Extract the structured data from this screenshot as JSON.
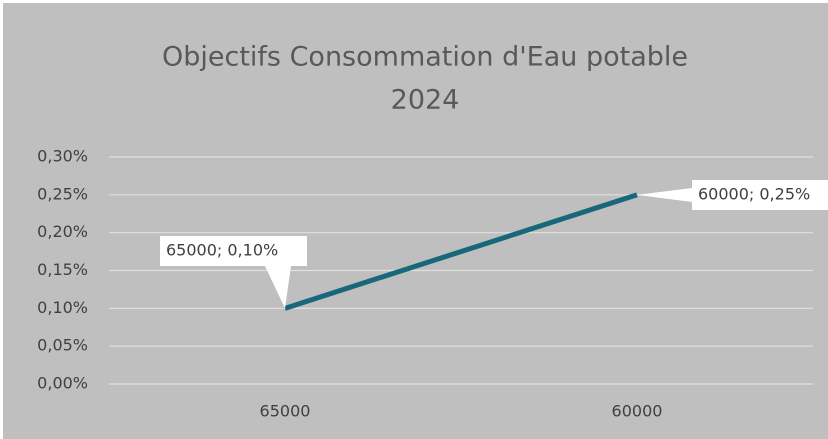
{
  "chart_data": {
    "type": "line",
    "title": [
      "Objectifs Consommation  d'Eau potable",
      "2024"
    ],
    "categories": [
      "65000",
      "60000"
    ],
    "series": [
      {
        "color": "#17687a",
        "values": [
          0.1,
          0.25
        ],
        "value_labels": [
          "65000; 0,10%",
          "60000; 0,25%"
        ]
      }
    ],
    "ylim": [
      0,
      0.3
    ],
    "yticks": [
      {
        "value": 0,
        "label": "0,00%"
      },
      {
        "value": 0.05,
        "label": "0,05%"
      },
      {
        "value": 0.1,
        "label": "0,10%"
      },
      {
        "value": 0.15,
        "label": "0,15%"
      },
      {
        "value": 0.2,
        "label": "0,20%"
      },
      {
        "value": 0.25,
        "label": "0,25%"
      },
      {
        "value": 0.3,
        "label": "0,30%"
      }
    ],
    "grid": true
  }
}
